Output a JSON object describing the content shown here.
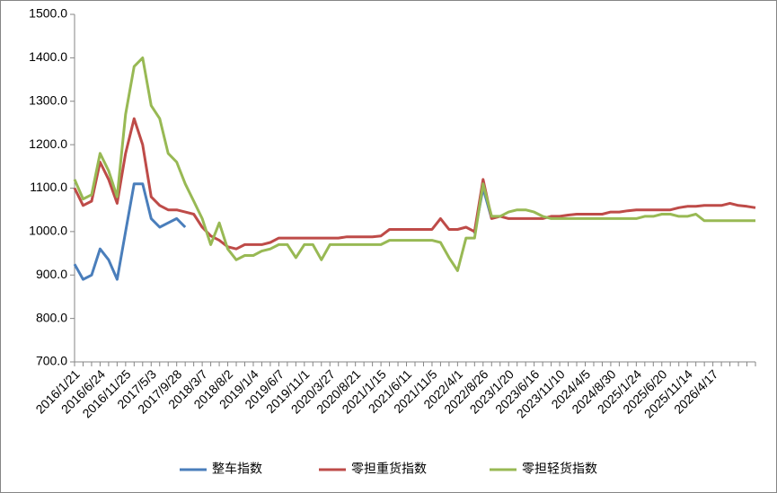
{
  "chart_data": {
    "type": "line",
    "categories": [
      "2016/1/21",
      null,
      null,
      "2016/6/24",
      null,
      null,
      "2016/11/25",
      null,
      null,
      "2017/5/3",
      null,
      null,
      "2017/9/28",
      null,
      null,
      "2018/3/7",
      null,
      null,
      "2018/8/2",
      null,
      null,
      "2019/1/4",
      null,
      null,
      "2019/6/7",
      null,
      null,
      "2019/11/1",
      null,
      null,
      "2020/3/27",
      null,
      null,
      "2020/8/21",
      null,
      null,
      "2021/1/15",
      null,
      null,
      "2021/6/11",
      null,
      null,
      "2021/11/5",
      null,
      null,
      "2022/4/1",
      null,
      null,
      "2022/8/26",
      null,
      null,
      "2023/1/20",
      null,
      null,
      "2023/6/16",
      null,
      null,
      "2023/11/10",
      null,
      null,
      "2024/4/5",
      null,
      null,
      "2024/8/30",
      null,
      null,
      "2025/1/24",
      null,
      null,
      "2025/6/20",
      null,
      null,
      "2025/11/14",
      null,
      null,
      "2026/4/17",
      null,
      null,
      null,
      null,
      null
    ],
    "series": [
      {
        "name": "整车指数",
        "color": "#4a7ebb",
        "values": [
          925,
          890,
          900,
          960,
          935,
          890,
          1000,
          1110,
          1110,
          1030,
          1010,
          1020,
          1030,
          1010,
          null,
          null,
          null,
          null,
          null,
          null,
          null,
          null,
          null,
          null,
          null,
          null,
          null,
          null,
          null,
          null,
          null,
          null,
          null,
          null,
          null,
          null,
          null,
          null,
          null,
          null,
          null,
          null,
          null,
          null,
          null,
          null,
          null,
          995,
          1100,
          1030,
          null,
          null,
          null,
          null,
          null,
          null,
          null,
          null,
          null,
          null,
          null,
          null,
          null,
          null,
          null,
          null,
          null,
          null,
          null,
          null,
          null,
          null,
          null,
          null,
          null,
          null,
          null,
          null,
          null,
          null,
          null
        ]
      },
      {
        "name": "零担重货指数",
        "color": "#be4b48",
        "values": [
          1100,
          1060,
          1070,
          1160,
          1120,
          1065,
          1180,
          1260,
          1200,
          1080,
          1060,
          1050,
          1050,
          1045,
          1040,
          1010,
          990,
          980,
          965,
          960,
          970,
          970,
          970,
          975,
          985,
          985,
          985,
          985,
          985,
          985,
          985,
          985,
          988,
          988,
          988,
          988,
          990,
          1005,
          1005,
          1005,
          1005,
          1005,
          1005,
          1030,
          1005,
          1005,
          1010,
          1000,
          1120,
          1030,
          1035,
          1030,
          1030,
          1030,
          1030,
          1030,
          1035,
          1035,
          1038,
          1040,
          1040,
          1040,
          1040,
          1045,
          1045,
          1048,
          1050,
          1050,
          1050,
          1050,
          1050,
          1055,
          1058,
          1058,
          1060,
          1060,
          1060,
          1065,
          1060,
          1058,
          1055
        ]
      },
      {
        "name": "零担轻货指数",
        "color": "#98b954",
        "values": [
          1120,
          1075,
          1085,
          1180,
          1140,
          1080,
          1270,
          1380,
          1400,
          1290,
          1260,
          1180,
          1160,
          1110,
          1070,
          1030,
          970,
          1020,
          960,
          935,
          945,
          945,
          955,
          960,
          970,
          970,
          940,
          970,
          970,
          935,
          970,
          970,
          970,
          970,
          970,
          970,
          970,
          980,
          980,
          980,
          980,
          980,
          980,
          975,
          940,
          910,
          985,
          985,
          1110,
          1035,
          1035,
          1045,
          1050,
          1050,
          1045,
          1035,
          1030,
          1030,
          1030,
          1030,
          1030,
          1030,
          1030,
          1030,
          1030,
          1030,
          1030,
          1035,
          1035,
          1040,
          1040,
          1035,
          1035,
          1040,
          1025,
          1025,
          1025,
          1025,
          1025,
          1025,
          1025
        ]
      }
    ],
    "ylim": [
      700,
      1500
    ],
    "yticks": [
      {
        "value": 700,
        "label": "700.0"
      },
      {
        "value": 800,
        "label": "800.0"
      },
      {
        "value": 900,
        "label": "900.0"
      },
      {
        "value": 1000,
        "label": "1000.0"
      },
      {
        "value": 1100,
        "label": "1100.0"
      },
      {
        "value": 1200,
        "label": "1200.0"
      },
      {
        "value": 1300,
        "label": "1300.0"
      },
      {
        "value": 1400,
        "label": "1400.0"
      },
      {
        "value": 1500,
        "label": "1500.0"
      }
    ],
    "legend": "bottom"
  }
}
